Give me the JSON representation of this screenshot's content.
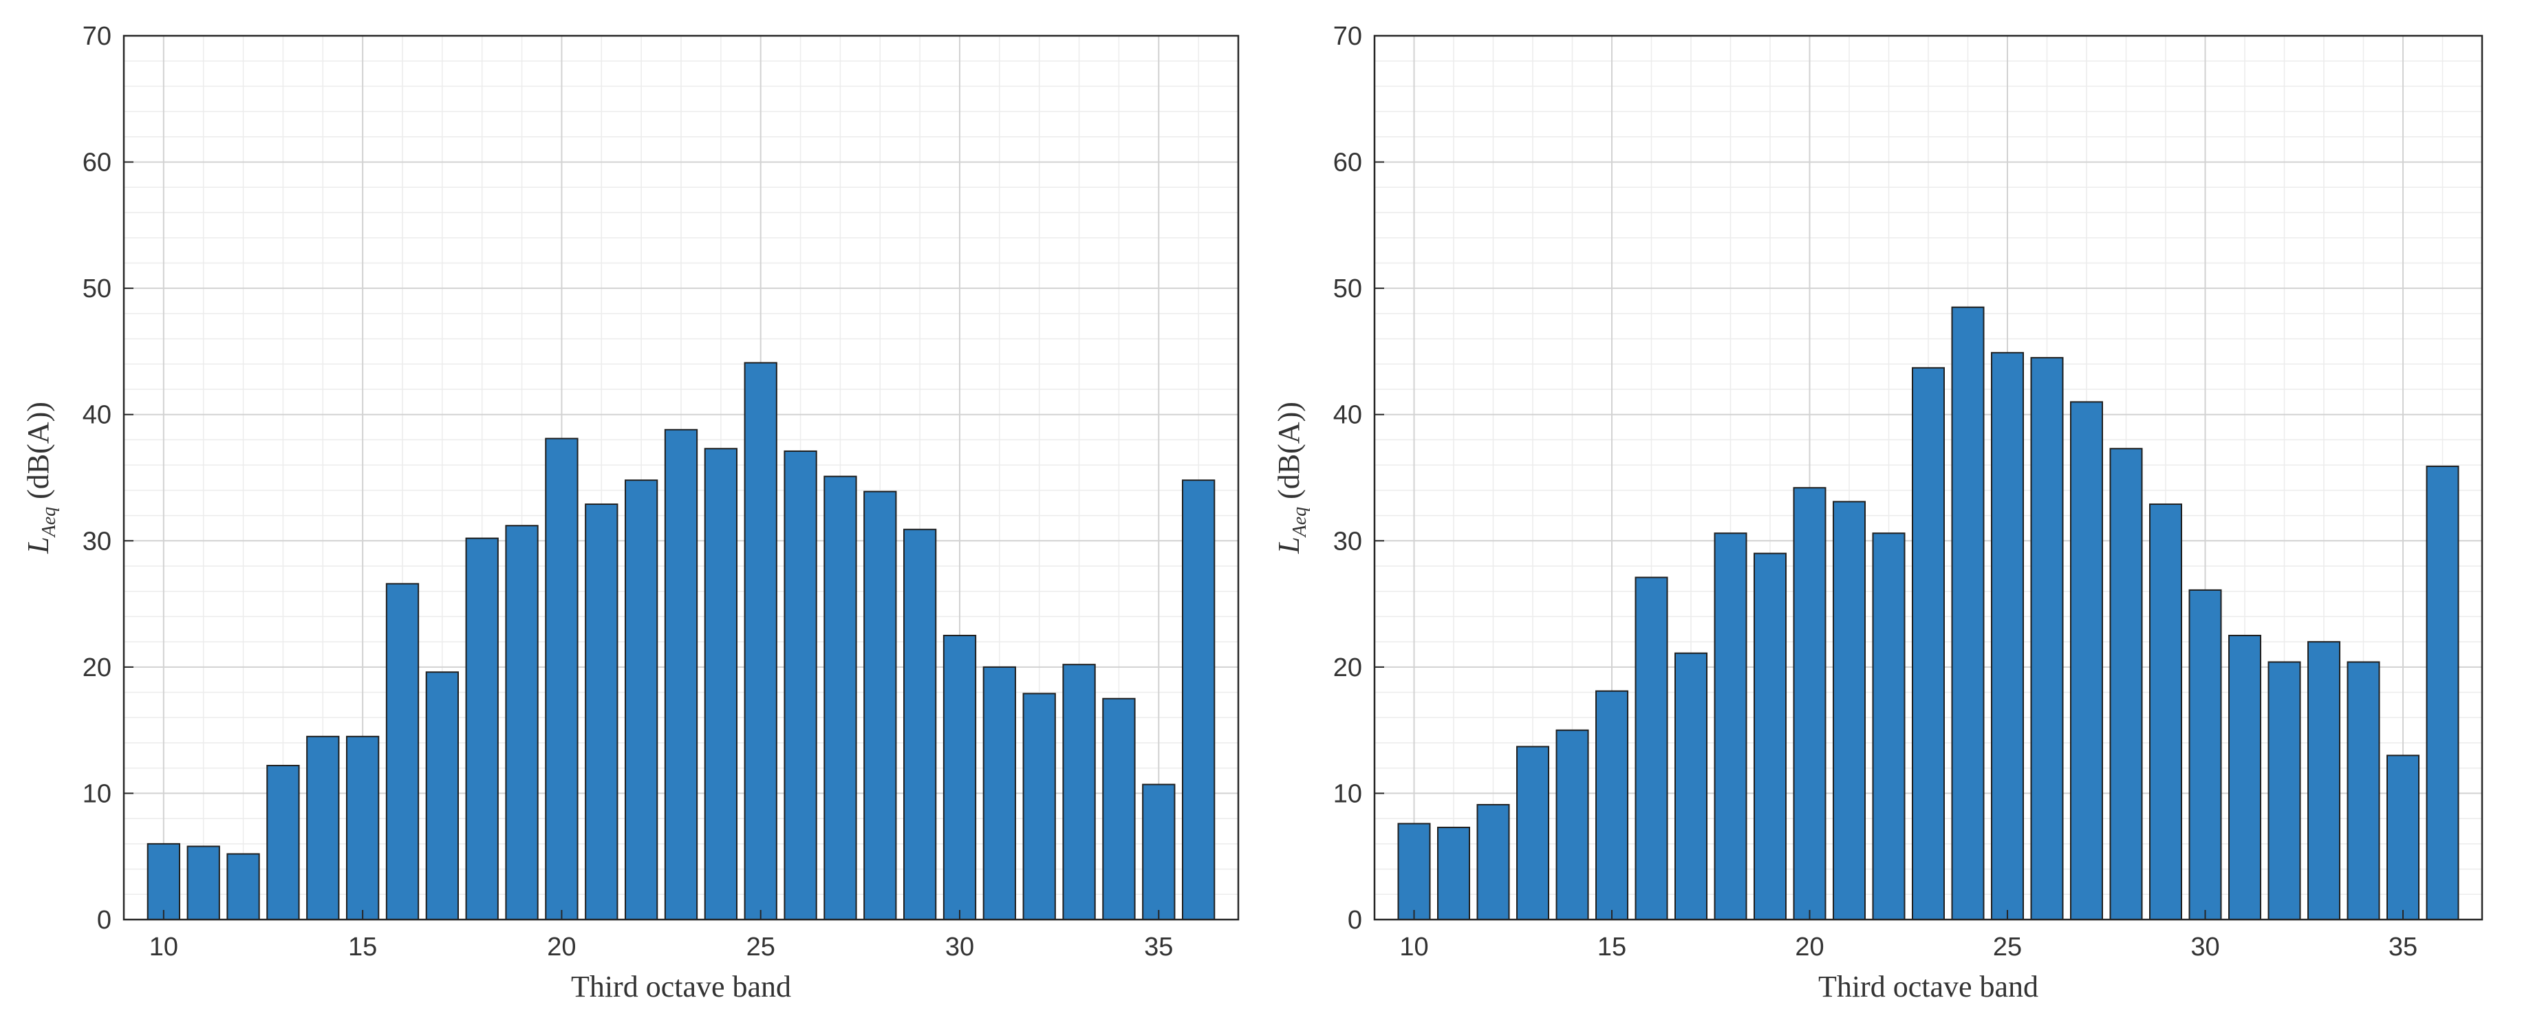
{
  "figure": {
    "panels": [
      {
        "ylabel_main": "L",
        "ylabel_sub": "Aeq",
        "ylabel_units": " (dB(A))"
      },
      {
        "ylabel_main": "L",
        "ylabel_sub": "Aeq",
        "ylabel_units": " (dB(A))"
      }
    ]
  },
  "chart_data": [
    {
      "type": "bar",
      "xlabel": "Third octave band",
      "ylabel": "L_Aeq (dB(A))",
      "xlim": [
        9,
        37
      ],
      "ylim": [
        0,
        70
      ],
      "xticks": [
        10,
        15,
        20,
        25,
        30,
        35
      ],
      "yticks": [
        0,
        10,
        20,
        30,
        40,
        50,
        60,
        70
      ],
      "grid": true,
      "minor_grid": true,
      "bar_color": "#2e7ebf",
      "x": [
        10,
        11,
        12,
        13,
        14,
        15,
        16,
        17,
        18,
        19,
        20,
        21,
        22,
        23,
        24,
        25,
        26,
        27,
        28,
        29,
        30,
        31,
        32,
        33,
        34,
        35,
        36
      ],
      "values": [
        6.0,
        5.8,
        5.2,
        12.2,
        14.5,
        14.5,
        26.6,
        19.6,
        30.2,
        31.2,
        38.1,
        32.9,
        34.8,
        38.8,
        37.3,
        44.1,
        37.1,
        35.1,
        33.9,
        30.9,
        22.5,
        20.0,
        17.9,
        20.2,
        17.5,
        10.7,
        34.8
      ]
    },
    {
      "type": "bar",
      "xlabel": "Third octave band",
      "ylabel": "L_Aeq (dB(A))",
      "xlim": [
        9,
        37
      ],
      "ylim": [
        0,
        70
      ],
      "xticks": [
        10,
        15,
        20,
        25,
        30,
        35
      ],
      "yticks": [
        0,
        10,
        20,
        30,
        40,
        50,
        60,
        70
      ],
      "grid": true,
      "minor_grid": true,
      "bar_color": "#2e7ebf",
      "x": [
        10,
        11,
        12,
        13,
        14,
        15,
        16,
        17,
        18,
        19,
        20,
        21,
        22,
        23,
        24,
        25,
        26,
        27,
        28,
        29,
        30,
        31,
        32,
        33,
        34,
        35,
        36
      ],
      "values": [
        7.6,
        7.3,
        9.1,
        13.7,
        15.0,
        18.1,
        27.1,
        21.1,
        30.6,
        29.0,
        34.2,
        33.1,
        30.6,
        43.7,
        48.5,
        44.9,
        44.5,
        41.0,
        37.3,
        32.9,
        26.1,
        22.5,
        20.4,
        22.0,
        20.4,
        13.0,
        35.9
      ]
    }
  ]
}
